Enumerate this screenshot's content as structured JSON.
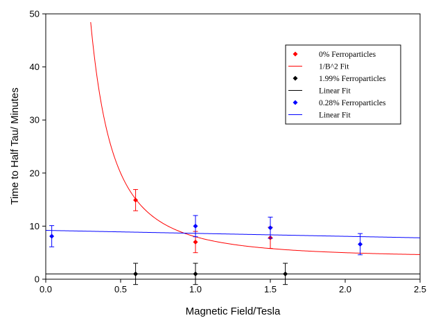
{
  "chart_data": {
    "type": "scatter",
    "xlabel": "Magnetic Field/Tesla",
    "ylabel": "Time to Half Tau/ Minutes",
    "xlim": [
      0,
      2.5
    ],
    "ylim": [
      0,
      50
    ],
    "x_ticks": [
      "0.0",
      "0.5",
      "1.0",
      "1.5",
      "2.0",
      "2.5"
    ],
    "y_ticks": [
      "0",
      "10",
      "20",
      "30",
      "40",
      "50"
    ],
    "legend_position": "top-right",
    "series": [
      {
        "name": "0% Ferroparticles",
        "kind": "points",
        "color": "#ff0000",
        "points": [
          {
            "x": 0.6,
            "y": 14.9,
            "err": 2.0
          },
          {
            "x": 1.0,
            "y": 7.0,
            "err": 2.0
          },
          {
            "x": 1.5,
            "y": 7.8,
            "err": 2.0
          }
        ]
      },
      {
        "name": "1/B^2 Fit",
        "kind": "fit",
        "color": "#ff0000",
        "model": "a + b/x^2",
        "params": {
          "a": 4.0,
          "b": 4.0
        },
        "x_range": [
          0.3,
          2.5
        ]
      },
      {
        "name": "1.99% Ferroparticles",
        "kind": "points",
        "color": "#000000",
        "points": [
          {
            "x": 0.6,
            "y": 1.0,
            "err": 2.0
          },
          {
            "x": 1.0,
            "y": 1.0,
            "err": 2.0
          },
          {
            "x": 1.6,
            "y": 1.0,
            "err": 2.0
          }
        ]
      },
      {
        "name": "Linear Fit",
        "kind": "fit",
        "color": "#000000",
        "model": "linear",
        "params": {
          "intercept": 1.0,
          "slope": 0.0
        },
        "x_range": [
          0,
          2.5
        ]
      },
      {
        "name": "0.28% Ferroparticles",
        "kind": "points",
        "color": "#0000ff",
        "points": [
          {
            "x": 0.04,
            "y": 8.1,
            "err": 2.0
          },
          {
            "x": 1.0,
            "y": 10.0,
            "err": 2.0
          },
          {
            "x": 1.5,
            "y": 9.7,
            "err": 2.0
          },
          {
            "x": 2.1,
            "y": 6.6,
            "err": 2.0
          }
        ]
      },
      {
        "name": "Linear Fit",
        "kind": "fit",
        "color": "#0000ff",
        "model": "linear",
        "params": {
          "intercept": 9.2,
          "slope": -0.56
        },
        "x_range": [
          0,
          2.5
        ]
      }
    ]
  }
}
